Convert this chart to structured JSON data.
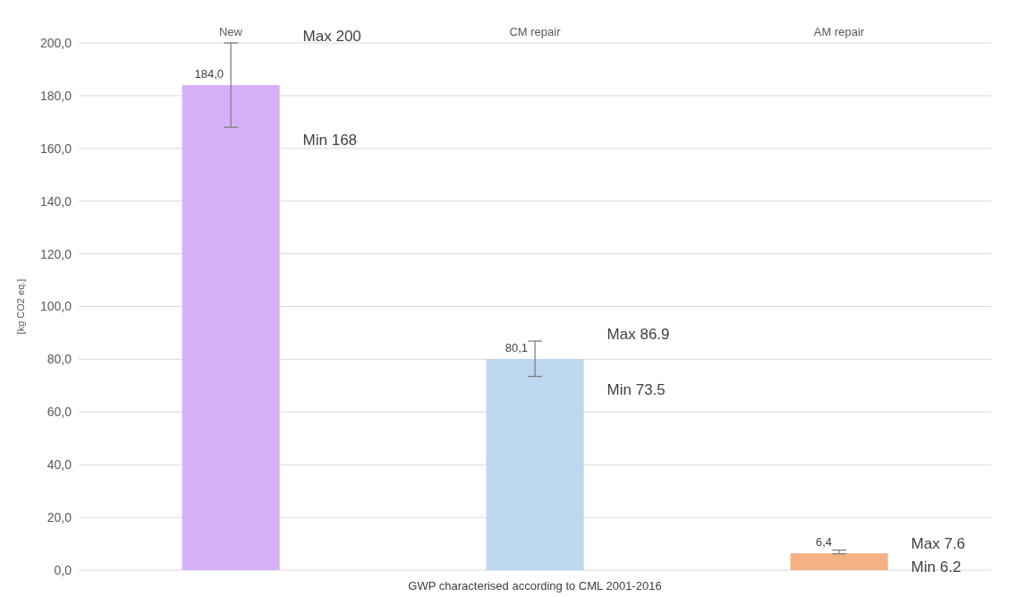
{
  "chart_data": {
    "type": "bar",
    "xlabel": "GWP characterised according to CML 2001-2016",
    "ylabel": "[kg CO2 eq.]",
    "categories": [
      "New",
      "CM repair",
      "AM repair"
    ],
    "values": [
      184.0,
      80.1,
      6.4
    ],
    "colors": [
      "#d5b0f9",
      "#bdd7ee",
      "#f4b183"
    ],
    "errors": [
      [
        168,
        200
      ],
      [
        73.5,
        86.9
      ],
      [
        6.2,
        7.6
      ]
    ],
    "value_labels": [
      "184,0",
      "80,1",
      "6,4"
    ],
    "annotations": [
      "Max 200",
      "Min 168",
      "Max 86.9",
      "Min 73.5",
      "Max 7.6",
      "Min 6.2"
    ],
    "ylim": [
      0,
      200
    ],
    "yticks": [
      {
        "value": 0,
        "label": "0,0"
      },
      {
        "value": 20,
        "label": "20,0"
      },
      {
        "value": 40,
        "label": "40,0"
      },
      {
        "value": 60,
        "label": "60,0"
      },
      {
        "value": 80,
        "label": "80,0"
      },
      {
        "value": 100,
        "label": "100,0"
      },
      {
        "value": 120,
        "label": "120,0"
      },
      {
        "value": 140,
        "label": "140,0"
      },
      {
        "value": 160,
        "label": "160,0"
      },
      {
        "value": 180,
        "label": "180,0"
      },
      {
        "value": 200,
        "label": "200,0"
      }
    ],
    "grid": "y"
  }
}
